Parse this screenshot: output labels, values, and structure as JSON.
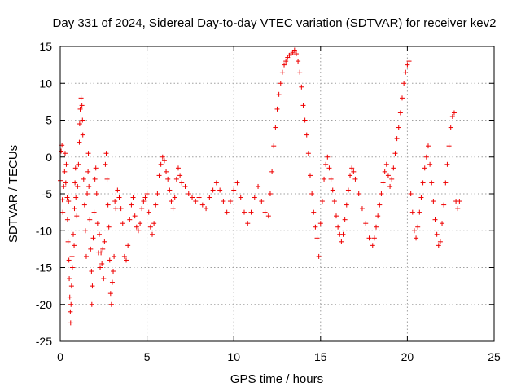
{
  "chart_data": {
    "type": "scatter",
    "title": "Day 331 of 2024, Sidereal Day-to-day VTEC variation (SDTVAR) for receiver kev2",
    "xlabel": "GPS time / hours",
    "ylabel": "SDTVAR / TECUs",
    "xlim": [
      0,
      25
    ],
    "ylim": [
      -25,
      15
    ],
    "x_ticks": [
      0,
      5,
      10,
      15,
      20,
      25
    ],
    "y_ticks": [
      -25,
      -20,
      -15,
      -10,
      -5,
      0,
      5,
      10,
      15
    ],
    "grid": true,
    "marker": "plus",
    "series_color": "#ee0000",
    "series": [
      {
        "name": "SDTVAR",
        "points": [
          [
            0.0,
            -3.2
          ],
          [
            0.05,
            0.8
          ],
          [
            0.1,
            1.6
          ],
          [
            0.12,
            -5.8
          ],
          [
            0.15,
            -7.5
          ],
          [
            0.2,
            -4.0
          ],
          [
            0.25,
            -2.0
          ],
          [
            0.28,
            0.5
          ],
          [
            0.32,
            -3.5
          ],
          [
            0.35,
            -1.0
          ],
          [
            0.4,
            -5.5
          ],
          [
            0.42,
            -8.5
          ],
          [
            0.45,
            -11.5
          ],
          [
            0.48,
            -6.0
          ],
          [
            0.5,
            -14.0
          ],
          [
            0.52,
            -16.5
          ],
          [
            0.55,
            -19.0
          ],
          [
            0.58,
            -21.0
          ],
          [
            0.6,
            -22.5
          ],
          [
            0.62,
            -20.0
          ],
          [
            0.65,
            -17.5
          ],
          [
            0.68,
            -13.5
          ],
          [
            0.7,
            -15.0
          ],
          [
            0.75,
            -10.5
          ],
          [
            0.8,
            -12.0
          ],
          [
            0.82,
            -7.0
          ],
          [
            0.85,
            -3.5
          ],
          [
            0.88,
            -1.5
          ],
          [
            0.9,
            -5.5
          ],
          [
            0.95,
            -8.0
          ],
          [
            1.0,
            -4.0
          ],
          [
            1.05,
            -1.0
          ],
          [
            1.1,
            2.0
          ],
          [
            1.12,
            4.5
          ],
          [
            1.15,
            6.5
          ],
          [
            1.2,
            8.0
          ],
          [
            1.25,
            7.0
          ],
          [
            1.28,
            5.0
          ],
          [
            1.3,
            3.0
          ],
          [
            1.35,
            -3.0
          ],
          [
            1.4,
            -6.5
          ],
          [
            1.45,
            -10.0
          ],
          [
            1.5,
            -13.5
          ],
          [
            1.55,
            -5.0
          ],
          [
            1.6,
            -2.0
          ],
          [
            1.62,
            0.5
          ],
          [
            1.65,
            -4.0
          ],
          [
            1.7,
            -8.5
          ],
          [
            1.75,
            -12.5
          ],
          [
            1.8,
            -15.5
          ],
          [
            1.82,
            -20.0
          ],
          [
            1.85,
            -17.5
          ],
          [
            1.9,
            -11.0
          ],
          [
            1.95,
            -7.5
          ],
          [
            2.0,
            -3.0
          ],
          [
            2.05,
            -1.5
          ],
          [
            2.1,
            -5.0
          ],
          [
            2.15,
            -9.0
          ],
          [
            2.2,
            -13.0
          ],
          [
            2.25,
            -10.5
          ],
          [
            2.3,
            -15.0
          ],
          [
            2.35,
            -13.0
          ],
          [
            2.4,
            -14.5
          ],
          [
            2.45,
            -12.5
          ],
          [
            2.5,
            -16.5
          ],
          [
            2.55,
            -11.5
          ],
          [
            2.6,
            -1.0
          ],
          [
            2.65,
            0.5
          ],
          [
            2.7,
            -3.0
          ],
          [
            2.75,
            -6.5
          ],
          [
            2.8,
            -9.5
          ],
          [
            2.85,
            -14.0
          ],
          [
            2.9,
            -18.5
          ],
          [
            2.95,
            -20.0
          ],
          [
            3.0,
            -17.0
          ],
          [
            3.05,
            -15.5
          ],
          [
            3.1,
            -13.5
          ],
          [
            3.15,
            -6.0
          ],
          [
            3.2,
            -7.0
          ],
          [
            3.3,
            -4.5
          ],
          [
            3.4,
            -5.5
          ],
          [
            3.5,
            -7.0
          ],
          [
            3.6,
            -9.0
          ],
          [
            3.7,
            -13.5
          ],
          [
            3.8,
            -14.0
          ],
          [
            3.9,
            -12.0
          ],
          [
            4.0,
            -8.5
          ],
          [
            4.1,
            -6.5
          ],
          [
            4.2,
            -5.5
          ],
          [
            4.3,
            -8.0
          ],
          [
            4.4,
            -9.5
          ],
          [
            4.5,
            -10.0
          ],
          [
            4.6,
            -9.0
          ],
          [
            4.7,
            -7.0
          ],
          [
            4.8,
            -6.0
          ],
          [
            4.9,
            -5.5
          ],
          [
            5.0,
            -5.0
          ],
          [
            5.1,
            -7.5
          ],
          [
            5.2,
            -9.5
          ],
          [
            5.3,
            -10.5
          ],
          [
            5.4,
            -9.0
          ],
          [
            5.5,
            -6.5
          ],
          [
            5.6,
            -5.0
          ],
          [
            5.7,
            -2.5
          ],
          [
            5.8,
            -1.0
          ],
          [
            5.9,
            0.0
          ],
          [
            6.0,
            -0.5
          ],
          [
            6.1,
            -2.0
          ],
          [
            6.2,
            -3.0
          ],
          [
            6.3,
            -4.5
          ],
          [
            6.4,
            -6.0
          ],
          [
            6.5,
            -7.0
          ],
          [
            6.6,
            -5.5
          ],
          [
            6.7,
            -3.0
          ],
          [
            6.8,
            -1.5
          ],
          [
            6.9,
            -2.5
          ],
          [
            7.0,
            -3.5
          ],
          [
            7.2,
            -4.0
          ],
          [
            7.4,
            -5.0
          ],
          [
            7.6,
            -5.5
          ],
          [
            7.8,
            -6.0
          ],
          [
            8.0,
            -5.5
          ],
          [
            8.2,
            -6.5
          ],
          [
            8.4,
            -7.0
          ],
          [
            8.6,
            -5.5
          ],
          [
            8.8,
            -4.5
          ],
          [
            9.0,
            -3.5
          ],
          [
            9.2,
            -4.5
          ],
          [
            9.4,
            -6.0
          ],
          [
            9.6,
            -7.5
          ],
          [
            9.8,
            -6.0
          ],
          [
            10.0,
            -4.5
          ],
          [
            10.2,
            -3.5
          ],
          [
            10.4,
            -5.5
          ],
          [
            10.6,
            -7.5
          ],
          [
            10.8,
            -9.0
          ],
          [
            11.0,
            -7.5
          ],
          [
            11.2,
            -5.5
          ],
          [
            11.4,
            -4.0
          ],
          [
            11.6,
            -6.0
          ],
          [
            11.8,
            -7.5
          ],
          [
            12.0,
            -8.0
          ],
          [
            12.1,
            -5.0
          ],
          [
            12.2,
            -2.0
          ],
          [
            12.3,
            1.5
          ],
          [
            12.4,
            4.0
          ],
          [
            12.5,
            6.5
          ],
          [
            12.6,
            8.5
          ],
          [
            12.7,
            10.0
          ],
          [
            12.8,
            11.5
          ],
          [
            12.9,
            12.5
          ],
          [
            13.0,
            13.0
          ],
          [
            13.1,
            13.5
          ],
          [
            13.2,
            13.8
          ],
          [
            13.3,
            14.0
          ],
          [
            13.4,
            14.2
          ],
          [
            13.5,
            14.5
          ],
          [
            13.6,
            14.0
          ],
          [
            13.7,
            13.0
          ],
          [
            13.8,
            11.5
          ],
          [
            13.9,
            9.5
          ],
          [
            14.0,
            7.0
          ],
          [
            14.1,
            5.0
          ],
          [
            14.2,
            3.0
          ],
          [
            14.3,
            0.5
          ],
          [
            14.4,
            -2.5
          ],
          [
            14.5,
            -5.0
          ],
          [
            14.6,
            -7.5
          ],
          [
            14.7,
            -9.5
          ],
          [
            14.8,
            -11.0
          ],
          [
            14.9,
            -13.5
          ],
          [
            15.0,
            -9.0
          ],
          [
            15.1,
            -6.0
          ],
          [
            15.2,
            -3.0
          ],
          [
            15.3,
            -1.0
          ],
          [
            15.4,
            0.0
          ],
          [
            15.5,
            -1.5
          ],
          [
            15.6,
            -3.0
          ],
          [
            15.7,
            -4.5
          ],
          [
            15.8,
            -6.0
          ],
          [
            15.9,
            -8.0
          ],
          [
            16.0,
            -9.5
          ],
          [
            16.1,
            -10.5
          ],
          [
            16.2,
            -11.5
          ],
          [
            16.3,
            -10.5
          ],
          [
            16.4,
            -8.5
          ],
          [
            16.5,
            -6.5
          ],
          [
            16.6,
            -4.5
          ],
          [
            16.7,
            -2.5
          ],
          [
            16.8,
            -1.5
          ],
          [
            16.9,
            -2.0
          ],
          [
            17.0,
            -3.0
          ],
          [
            17.2,
            -5.0
          ],
          [
            17.4,
            -7.0
          ],
          [
            17.6,
            -9.0
          ],
          [
            17.8,
            -11.0
          ],
          [
            18.0,
            -12.0
          ],
          [
            18.1,
            -11.0
          ],
          [
            18.2,
            -9.5
          ],
          [
            18.3,
            -8.0
          ],
          [
            18.4,
            -6.5
          ],
          [
            18.5,
            -5.0
          ],
          [
            18.6,
            -3.5
          ],
          [
            18.7,
            -2.0
          ],
          [
            18.8,
            -1.0
          ],
          [
            18.9,
            -2.5
          ],
          [
            19.0,
            -4.0
          ],
          [
            19.1,
            -3.0
          ],
          [
            19.2,
            -1.5
          ],
          [
            19.3,
            0.5
          ],
          [
            19.4,
            2.5
          ],
          [
            19.5,
            4.0
          ],
          [
            19.6,
            6.0
          ],
          [
            19.7,
            8.0
          ],
          [
            19.8,
            10.0
          ],
          [
            19.9,
            11.5
          ],
          [
            20.0,
            12.5
          ],
          [
            20.1,
            13.0
          ],
          [
            20.2,
            -5.0
          ],
          [
            20.3,
            -7.5
          ],
          [
            20.4,
            -10.0
          ],
          [
            20.5,
            -11.0
          ],
          [
            20.6,
            -9.5
          ],
          [
            20.7,
            -7.5
          ],
          [
            20.8,
            -5.5
          ],
          [
            20.9,
            -3.5
          ],
          [
            21.0,
            -1.5
          ],
          [
            21.1,
            0.0
          ],
          [
            21.2,
            1.5
          ],
          [
            21.3,
            -1.0
          ],
          [
            21.4,
            -3.5
          ],
          [
            21.5,
            -6.0
          ],
          [
            21.6,
            -8.5
          ],
          [
            21.7,
            -10.5
          ],
          [
            21.8,
            -12.0
          ],
          [
            21.9,
            -11.5
          ],
          [
            22.0,
            -9.0
          ],
          [
            22.1,
            -6.5
          ],
          [
            22.2,
            -3.5
          ],
          [
            22.3,
            -1.0
          ],
          [
            22.4,
            1.5
          ],
          [
            22.5,
            4.0
          ],
          [
            22.6,
            5.5
          ],
          [
            22.7,
            6.0
          ],
          [
            22.8,
            -6.0
          ],
          [
            22.9,
            -7.0
          ],
          [
            23.0,
            -6.0
          ]
        ]
      }
    ]
  }
}
